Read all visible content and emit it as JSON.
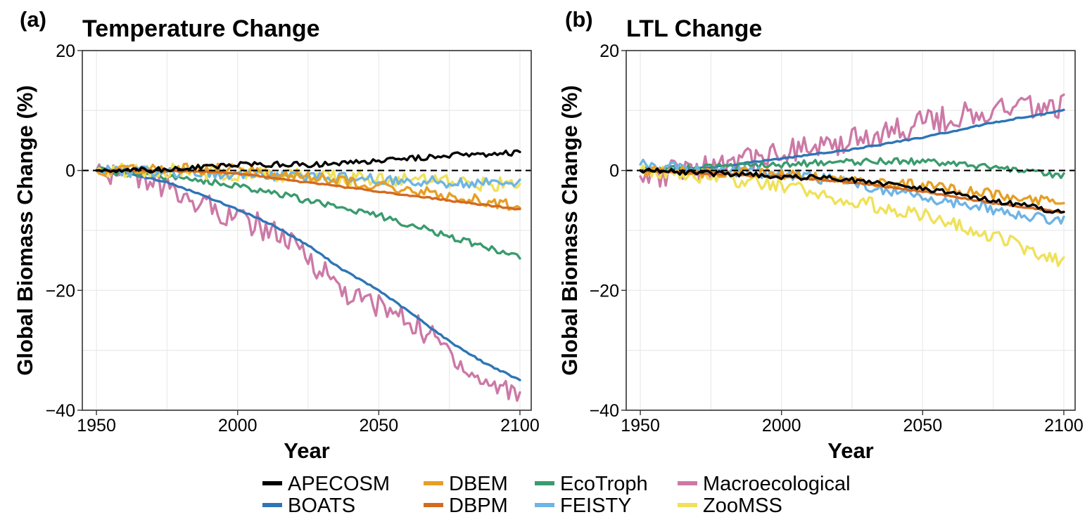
{
  "chart_data": [
    {
      "type": "line",
      "panel_label": "(a)",
      "title": "Temperature Change",
      "xlabel": "Year",
      "ylabel": "Global Biomass Change (%)",
      "xlim": [
        1945,
        2104
      ],
      "ylim": [
        -40,
        20
      ],
      "xticks": [
        1950,
        2000,
        2050,
        2100
      ],
      "yticks": [
        20,
        0,
        -20,
        -40
      ],
      "ytick_labels": [
        "20",
        "0",
        "−20",
        "−40"
      ],
      "grid": true,
      "reference_line": {
        "y": 0,
        "style": "dashed"
      },
      "series": [
        {
          "name": "APECOSM",
          "color": "#000000",
          "x": [
            1950,
            1975,
            2000,
            2025,
            2050,
            2075,
            2100
          ],
          "values": [
            0,
            0.1,
            1.0,
            1.0,
            1.5,
            2.5,
            3.0
          ]
        },
        {
          "name": "DBEM",
          "color": "#E69F25",
          "x": [
            1950,
            1975,
            2000,
            2025,
            2050,
            2075,
            2100
          ],
          "values": [
            0,
            0.3,
            0.3,
            -1.2,
            -2.5,
            -4.2,
            -6.0
          ]
        },
        {
          "name": "EcoTroph",
          "color": "#3A9B6E",
          "x": [
            1950,
            1975,
            2000,
            2025,
            2050,
            2075,
            2100
          ],
          "values": [
            0,
            -1.0,
            -2.5,
            -5.0,
            -7.5,
            -11.0,
            -14.5
          ]
        },
        {
          "name": "Macroecological",
          "color": "#CC79A7",
          "x": [
            1950,
            1960,
            1975,
            1990,
            2000,
            2012,
            2025,
            2040,
            2050,
            2062,
            2075,
            2085,
            2100
          ],
          "values": [
            0,
            -0.5,
            -3.0,
            -6.0,
            -8.0,
            -10.0,
            -14.5,
            -21.0,
            -22.5,
            -25.5,
            -30.0,
            -35.0,
            -37.0
          ]
        },
        {
          "name": "BOATS",
          "color": "#2E75B6",
          "x": [
            1950,
            1962,
            1975,
            1987,
            2000,
            2012,
            2025,
            2037,
            2050,
            2062,
            2075,
            2087,
            2100
          ],
          "values": [
            0,
            -0.5,
            -2.0,
            -4.0,
            -6.5,
            -9.0,
            -12.5,
            -16.5,
            -20.0,
            -24.0,
            -28.5,
            -32.0,
            -35.0
          ]
        },
        {
          "name": "DBPM",
          "color": "#D46A1F",
          "x": [
            1950,
            1975,
            2000,
            2025,
            2050,
            2075,
            2100
          ],
          "values": [
            0,
            0,
            -0.5,
            -2.0,
            -3.5,
            -5.0,
            -6.5
          ]
        },
        {
          "name": "FEISTY",
          "color": "#6EB4E4",
          "x": [
            1950,
            1975,
            2000,
            2025,
            2050,
            2075,
            2100
          ],
          "values": [
            0,
            -0.3,
            -0.6,
            -1.0,
            -1.5,
            -2.0,
            -2.0
          ]
        },
        {
          "name": "ZooMSS",
          "color": "#EFE159",
          "x": [
            1950,
            1975,
            2000,
            2025,
            2050,
            2075,
            2100
          ],
          "values": [
            0,
            0,
            -0.5,
            -1.0,
            -1.5,
            -2.0,
            -2.5
          ]
        }
      ]
    },
    {
      "type": "line",
      "panel_label": "(b)",
      "title": "LTL Change",
      "xlabel": "Year",
      "ylabel": "Global Biomass Change (%)",
      "xlim": [
        1945,
        2104
      ],
      "ylim": [
        -40,
        20
      ],
      "xticks": [
        1950,
        2000,
        2050,
        2100
      ],
      "yticks": [
        20,
        0,
        -20,
        -40
      ],
      "ytick_labels": [
        "20",
        "0",
        "−20",
        "−40"
      ],
      "grid": true,
      "reference_line": {
        "y": 0,
        "style": "dashed"
      },
      "series": [
        {
          "name": "APECOSM",
          "color": "#000000",
          "x": [
            1950,
            1975,
            2000,
            2025,
            2050,
            2075,
            2100
          ],
          "values": [
            0,
            -0.5,
            -1.0,
            -1.5,
            -3.0,
            -5.0,
            -7.0
          ]
        },
        {
          "name": "DBEM",
          "color": "#E69F25",
          "x": [
            1950,
            1975,
            2000,
            2025,
            2050,
            2075,
            2100
          ],
          "values": [
            0,
            -0.3,
            -0.5,
            -1.5,
            -2.5,
            -4.0,
            -5.5
          ]
        },
        {
          "name": "EcoTroph",
          "color": "#3A9B6E",
          "x": [
            1950,
            1975,
            2000,
            2025,
            2050,
            2075,
            2100
          ],
          "values": [
            0,
            0.5,
            1.0,
            1.5,
            1.5,
            0.5,
            -1.0
          ]
        },
        {
          "name": "Macroecological",
          "color": "#CC79A7",
          "x": [
            1950,
            1975,
            2000,
            2025,
            2050,
            2075,
            2100
          ],
          "values": [
            -1.0,
            0.5,
            3.0,
            5.0,
            8.0,
            10.0,
            11.0
          ]
        },
        {
          "name": "BOATS",
          "color": "#2E75B6",
          "x": [
            1950,
            1975,
            2000,
            2025,
            2050,
            2075,
            2100
          ],
          "values": [
            0,
            0.5,
            2.0,
            3.5,
            5.5,
            8.0,
            10.0
          ]
        },
        {
          "name": "DBPM",
          "color": "#D46A1F",
          "x": [
            1950,
            1975,
            2000,
            2025,
            2050,
            2075,
            2100
          ],
          "values": [
            0,
            -0.5,
            -1.0,
            -2.0,
            -3.5,
            -5.5,
            -7.0
          ]
        },
        {
          "name": "FEISTY",
          "color": "#6EB4E4",
          "x": [
            1950,
            1975,
            2000,
            2025,
            2050,
            2075,
            2100
          ],
          "values": [
            1.0,
            0,
            -0.5,
            -2.0,
            -4.5,
            -6.5,
            -8.5
          ]
        },
        {
          "name": "ZooMSS",
          "color": "#EFE159",
          "x": [
            1950,
            1975,
            2000,
            2025,
            2050,
            2075,
            2100
          ],
          "values": [
            0,
            -1.0,
            -2.5,
            -5.0,
            -7.5,
            -11.0,
            -15.5
          ]
        }
      ]
    }
  ],
  "legend": {
    "placement": "bottom",
    "entries": [
      {
        "label": "APECOSM",
        "color": "#000000"
      },
      {
        "label": "BOATS",
        "color": "#2E75B6"
      },
      {
        "label": "DBEM",
        "color": "#E69F25"
      },
      {
        "label": "DBPM",
        "color": "#D46A1F"
      },
      {
        "label": "EcoTroph",
        "color": "#3A9B6E"
      },
      {
        "label": "FEISTY",
        "color": "#6EB4E4"
      },
      {
        "label": "Macroecological",
        "color": "#CC79A7"
      },
      {
        "label": "ZooMSS",
        "color": "#EFE159"
      }
    ]
  }
}
